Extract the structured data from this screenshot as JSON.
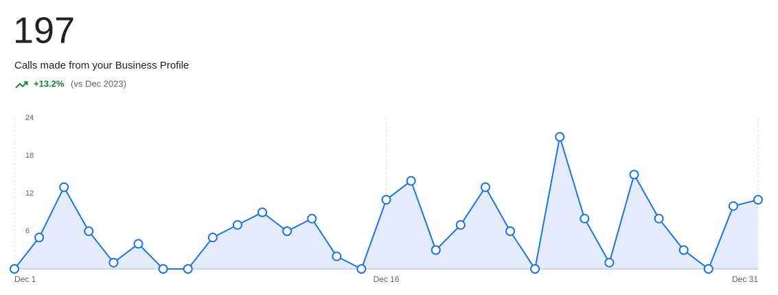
{
  "summary": {
    "total": 197,
    "description": "Calls made from your Business Profile",
    "change": "+13.2%",
    "comparison": "(vs Dec 2023)"
  },
  "chart_data": {
    "type": "line",
    "categories": [
      "Dec 1",
      null,
      null,
      null,
      null,
      null,
      null,
      null,
      null,
      null,
      null,
      null,
      null,
      null,
      null,
      "Dec 16",
      null,
      null,
      null,
      null,
      null,
      null,
      null,
      null,
      null,
      null,
      null,
      null,
      null,
      null,
      "Dec 31"
    ],
    "series": [
      {
        "color": "#1a73e8",
        "values": [
          0,
          5,
          13,
          6,
          1,
          4,
          0,
          0,
          5,
          7,
          9,
          6,
          8,
          2,
          0,
          11,
          14,
          3,
          7,
          13,
          6,
          0,
          21,
          8,
          1,
          15,
          8,
          3,
          0,
          10,
          11
        ]
      }
    ],
    "ylim": [
      0,
      24
    ],
    "yticks": [
      6,
      12,
      18,
      24
    ],
    "area_color": "#e4ecfb"
  }
}
